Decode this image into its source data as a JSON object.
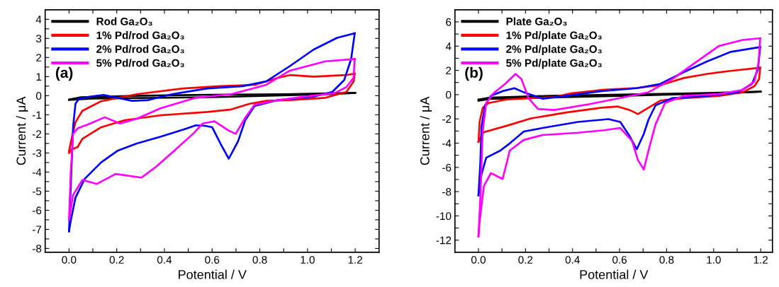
{
  "chart_data": [
    {
      "type": "line",
      "xlabel": "Potential / V",
      "ylabel": "Current / μA",
      "annotations": [
        "(a)"
      ],
      "legend": "top left",
      "grid": false,
      "marker": "none",
      "line_style": "solid",
      "xlim": [
        -0.1,
        1.3
      ],
      "ylim": [
        -8.2,
        4.5
      ],
      "xticks": [
        {
          "value": 0.0,
          "label": "0.0"
        },
        {
          "value": 0.1,
          "label": null
        },
        {
          "value": 0.2,
          "label": "0.2"
        },
        {
          "value": 0.3,
          "label": null
        },
        {
          "value": 0.4,
          "label": "0.4"
        },
        {
          "value": 0.5,
          "label": null
        },
        {
          "value": 0.6,
          "label": "0.6"
        },
        {
          "value": 0.7,
          "label": null
        },
        {
          "value": 0.8,
          "label": "0.8"
        },
        {
          "value": 0.9,
          "label": null
        },
        {
          "value": 1.0,
          "label": "1.0"
        },
        {
          "value": 1.1,
          "label": null
        },
        {
          "value": 1.2,
          "label": "1.2"
        }
      ],
      "yticks": [
        -8,
        {
          "value": -7.5,
          "label": null
        },
        -7,
        {
          "value": -6.5,
          "label": null
        },
        -6,
        {
          "value": -5.5,
          "label": null
        },
        -5,
        {
          "value": -4.5,
          "label": null
        },
        -4,
        {
          "value": -3.5,
          "label": null
        },
        -3,
        {
          "value": -2.5,
          "label": null
        },
        -2,
        {
          "value": -1.5,
          "label": null
        },
        -1,
        {
          "value": -0.5,
          "label": null
        },
        0,
        {
          "value": 0.5,
          "label": null
        },
        1,
        {
          "value": 1.5,
          "label": null
        },
        2,
        {
          "value": 2.5,
          "label": null
        },
        3,
        {
          "value": 3.5,
          "label": null
        },
        4
      ],
      "series": [
        {
          "name": "Rod Ga₂O₃",
          "color": "#000000",
          "x": [
            0,
            0.05,
            0.3,
            0.6,
            0.9,
            1.2
          ],
          "values": [
            -0.2,
            -0.08,
            0.0,
            0.05,
            0.08,
            0.15
          ]
        },
        {
          "color": "#000000",
          "x": [
            1.2,
            1.1,
            0.6,
            0.1,
            0
          ],
          "values": [
            0.15,
            0.08,
            -0.08,
            -0.15,
            -0.22
          ]
        },
        {
          "name": "1% Pd/rod Ga₂O₃",
          "color": "#ff0000",
          "x": [
            0,
            0.01,
            0.027,
            0.056,
            0.135,
            0.284,
            0.48,
            0.63,
            0.78,
            0.877,
            0.926,
            1.025,
            1.163,
            1.198
          ],
          "values": [
            -2.9,
            -2.3,
            -1.39,
            -0.79,
            -0.29,
            0.08,
            0.38,
            0.5,
            0.57,
            0.94,
            1.08,
            1.0,
            1.08,
            1.16
          ]
        },
        {
          "color": "#ff0000",
          "x": [
            1.198,
            1.194,
            1.163,
            1.075,
            0.926,
            0.827,
            0.758,
            0.68,
            0.58,
            0.38,
            0.234,
            0.135,
            0.056,
            0.036,
            0.012,
            0
          ],
          "values": [
            1.16,
            0.75,
            0.2,
            -0.11,
            -0.23,
            -0.27,
            -0.42,
            -0.72,
            -0.85,
            -1.03,
            -1.28,
            -1.65,
            -2.26,
            -2.69,
            -2.81,
            -3.0
          ]
        },
        {
          "name": "2% Pd/rod Ga₂O₃",
          "color": "#0000ff",
          "x": [
            0,
            0.017,
            0.027,
            0.041,
            0.086,
            0.145,
            0.18,
            0.264,
            0.333,
            0.432,
            0.58,
            0.728,
            0.827,
            0.926,
            1.025,
            1.124,
            1.198
          ],
          "values": [
            -7.1,
            -1.65,
            -0.42,
            -0.17,
            -0.05,
            0.04,
            -0.05,
            -0.27,
            -0.23,
            0.08,
            0.38,
            0.5,
            0.75,
            1.55,
            2.41,
            3.03,
            3.27
          ]
        },
        {
          "color": "#0000ff",
          "x": [
            1.198,
            1.183,
            1.154,
            1.104,
            1.025,
            0.877,
            0.778,
            0.739,
            0.709,
            0.67,
            0.64,
            0.6,
            0.57,
            0.532,
            0.48,
            0.385,
            0.284,
            0.205,
            0.135,
            0.066,
            0.027,
            0.007,
            0
          ],
          "values": [
            3.27,
            1.92,
            0.82,
            0.2,
            -0.05,
            -0.23,
            -0.54,
            -1.28,
            -2.38,
            -3.3,
            -2.63,
            -1.65,
            -1.58,
            -1.55,
            -1.77,
            -2.14,
            -2.5,
            -2.87,
            -3.49,
            -4.35,
            -5.34,
            -6.57,
            -7.1
          ]
        },
        {
          "name": "5% Pd/rod Ga₂O₃",
          "color": "#ff00ff",
          "x": [
            0,
            0.007,
            0.017,
            0.036,
            0.076,
            0.15,
            0.214,
            0.284,
            0.383,
            0.532,
            0.68,
            0.827,
            0.926,
            1.075,
            1.198
          ],
          "values": [
            -6.5,
            -4.1,
            -2.0,
            -1.71,
            -1.52,
            -1.13,
            -1.46,
            -1.21,
            -0.66,
            -0.11,
            0.08,
            0.57,
            1.31,
            1.8,
            1.92
          ]
        },
        {
          "color": "#ff00ff",
          "x": [
            1.198,
            1.193,
            1.163,
            1.114,
            1.025,
            0.877,
            0.778,
            0.739,
            0.699,
            0.67,
            0.61,
            0.56,
            0.52,
            0.442,
            0.363,
            0.304,
            0.195,
            0.117,
            0.056,
            0.017,
            0
          ],
          "values": [
            1.92,
            0.94,
            0.45,
            0.14,
            0.01,
            -0.23,
            -0.48,
            -1.15,
            -2.0,
            -1.83,
            -1.34,
            -1.46,
            -2.0,
            -2.87,
            -3.74,
            -4.29,
            -4.1,
            -4.62,
            -4.41,
            -5.21,
            -6.5
          ]
        }
      ]
    },
    {
      "type": "line",
      "xlabel": "Potential / V",
      "ylabel": "Current / μA",
      "annotations": [
        "(b)"
      ],
      "legend": "top left",
      "grid": false,
      "marker": "none",
      "line_style": "solid",
      "xlim": [
        -0.1,
        1.25
      ],
      "ylim": [
        -13,
        7
      ],
      "xticks": [
        {
          "value": 0.0,
          "label": "0.0"
        },
        {
          "value": 0.1,
          "label": null
        },
        {
          "value": 0.2,
          "label": "0.2"
        },
        {
          "value": 0.3,
          "label": null
        },
        {
          "value": 0.4,
          "label": "0.4"
        },
        {
          "value": 0.5,
          "label": null
        },
        {
          "value": 0.6,
          "label": "0.6"
        },
        {
          "value": 0.7,
          "label": null
        },
        {
          "value": 0.8,
          "label": "0.8"
        },
        {
          "value": 0.9,
          "label": null
        },
        {
          "value": 1.0,
          "label": "1.0"
        },
        {
          "value": 1.1,
          "label": null
        },
        {
          "value": 1.2,
          "label": "1.2"
        }
      ],
      "yticks": [
        -12,
        {
          "value": -11,
          "label": null
        },
        -10,
        {
          "value": -9,
          "label": null
        },
        -8,
        {
          "value": -7,
          "label": null
        },
        -6,
        {
          "value": -5,
          "label": null
        },
        -4,
        {
          "value": -3,
          "label": null
        },
        -2,
        {
          "value": -1,
          "label": null
        },
        0,
        {
          "value": 1,
          "label": null
        },
        2,
        {
          "value": 3,
          "label": null
        },
        4,
        {
          "value": 5,
          "label": null
        },
        6
      ],
      "series": [
        {
          "name": "Plate Ga₂O₃",
          "color": "#000000",
          "x": [
            0,
            0.05,
            0.3,
            0.6,
            0.9,
            1.2
          ],
          "values": [
            -0.4,
            -0.25,
            -0.1,
            0.0,
            0.1,
            0.25
          ]
        },
        {
          "color": "#000000",
          "x": [
            1.2,
            1.1,
            0.6,
            0.05,
            0
          ],
          "values": [
            0.25,
            0.15,
            -0.1,
            -0.35,
            -0.5
          ]
        },
        {
          "name": "1% Pd/plate Ga₂O₃",
          "color": "#ff0000",
          "x": [
            0,
            0.005,
            0.018,
            0.043,
            0.123,
            0.223,
            0.323,
            0.393,
            0.523,
            0.673,
            0.773,
            0.873,
            0.973,
            1.073,
            1.198
          ],
          "values": [
            -3.9,
            -2.25,
            -1.08,
            -0.69,
            -0.39,
            -0.29,
            -0.2,
            0.1,
            0.39,
            0.55,
            0.78,
            1.37,
            1.71,
            1.96,
            2.22
          ]
        },
        {
          "color": "#ff0000",
          "x": [
            1.198,
            1.193,
            1.173,
            1.123,
            1.023,
            0.873,
            0.773,
            0.723,
            0.678,
            0.643,
            0.593,
            0.523,
            0.373,
            0.223,
            0.123,
            0.023,
            0.013,
            0
          ],
          "values": [
            2.22,
            1.27,
            0.69,
            0.19,
            -0.1,
            -0.29,
            -0.49,
            -1.08,
            -1.6,
            -1.27,
            -0.98,
            -1.08,
            -1.47,
            -1.96,
            -2.55,
            -3.1,
            -3.4,
            -3.9
          ]
        },
        {
          "name": "2% Pd/plate Ga₂O₃",
          "color": "#0000ff",
          "x": [
            0,
            0.008,
            0.013,
            0.028,
            0.053,
            0.103,
            0.153,
            0.193,
            0.273,
            0.373,
            0.523,
            0.673,
            0.773,
            0.873,
            0.973,
            1.073,
            1.198
          ],
          "values": [
            -8.3,
            -5.59,
            -2.65,
            -0.88,
            -0.1,
            0.29,
            0.53,
            0.19,
            -0.34,
            -0.1,
            0.29,
            0.53,
            0.88,
            1.86,
            2.75,
            3.53,
            3.92
          ]
        },
        {
          "color": "#0000ff",
          "x": [
            1.198,
            1.188,
            1.163,
            1.103,
            0.973,
            0.823,
            0.753,
            0.723,
            0.703,
            0.673,
            0.643,
            0.603,
            0.553,
            0.423,
            0.273,
            0.193,
            0.133,
            0.093,
            0.033,
            0.013,
            0
          ],
          "values": [
            3.92,
            2.06,
            0.88,
            0.19,
            -0.1,
            -0.29,
            -0.88,
            -2.06,
            -3.24,
            -4.51,
            -3.43,
            -2.25,
            -2.02,
            -2.25,
            -2.75,
            -3.04,
            -4.02,
            -4.61,
            -5.2,
            -6.57,
            -8.3
          ]
        },
        {
          "name": "5% Pd/plate Ga₂O₃",
          "color": "#ff00ff",
          "x": [
            0,
            0.008,
            0.018,
            0.033,
            0.063,
            0.113,
            0.158,
            0.183,
            0.213,
            0.253,
            0.323,
            0.473,
            0.623,
            0.723,
            0.823,
            0.923,
            1.023,
            1.123,
            1.198
          ],
          "values": [
            -11.7,
            -8.53,
            -3.04,
            -0.69,
            0.1,
            0.88,
            1.71,
            1.27,
            -0.29,
            -1.18,
            -1.27,
            -0.78,
            -0.2,
            0.2,
            1.27,
            2.65,
            4.02,
            4.51,
            4.65
          ]
        },
        {
          "color": "#ff00ff",
          "x": [
            1.198,
            1.191,
            1.173,
            1.123,
            1.023,
            0.873,
            0.793,
            0.753,
            0.723,
            0.703,
            0.678,
            0.653,
            0.603,
            0.533,
            0.423,
            0.273,
            0.193,
            0.133,
            0.103,
            0.053,
            0.023,
            0.005,
            0
          ],
          "values": [
            4.65,
            2.65,
            1.08,
            0.39,
            0.06,
            -0.1,
            -0.69,
            -2.45,
            -4.61,
            -6.18,
            -5.39,
            -3.82,
            -2.75,
            -2.94,
            -3.14,
            -3.33,
            -3.73,
            -4.61,
            -6.96,
            -6.47,
            -7.55,
            -10.49,
            -11.7
          ]
        }
      ]
    }
  ]
}
